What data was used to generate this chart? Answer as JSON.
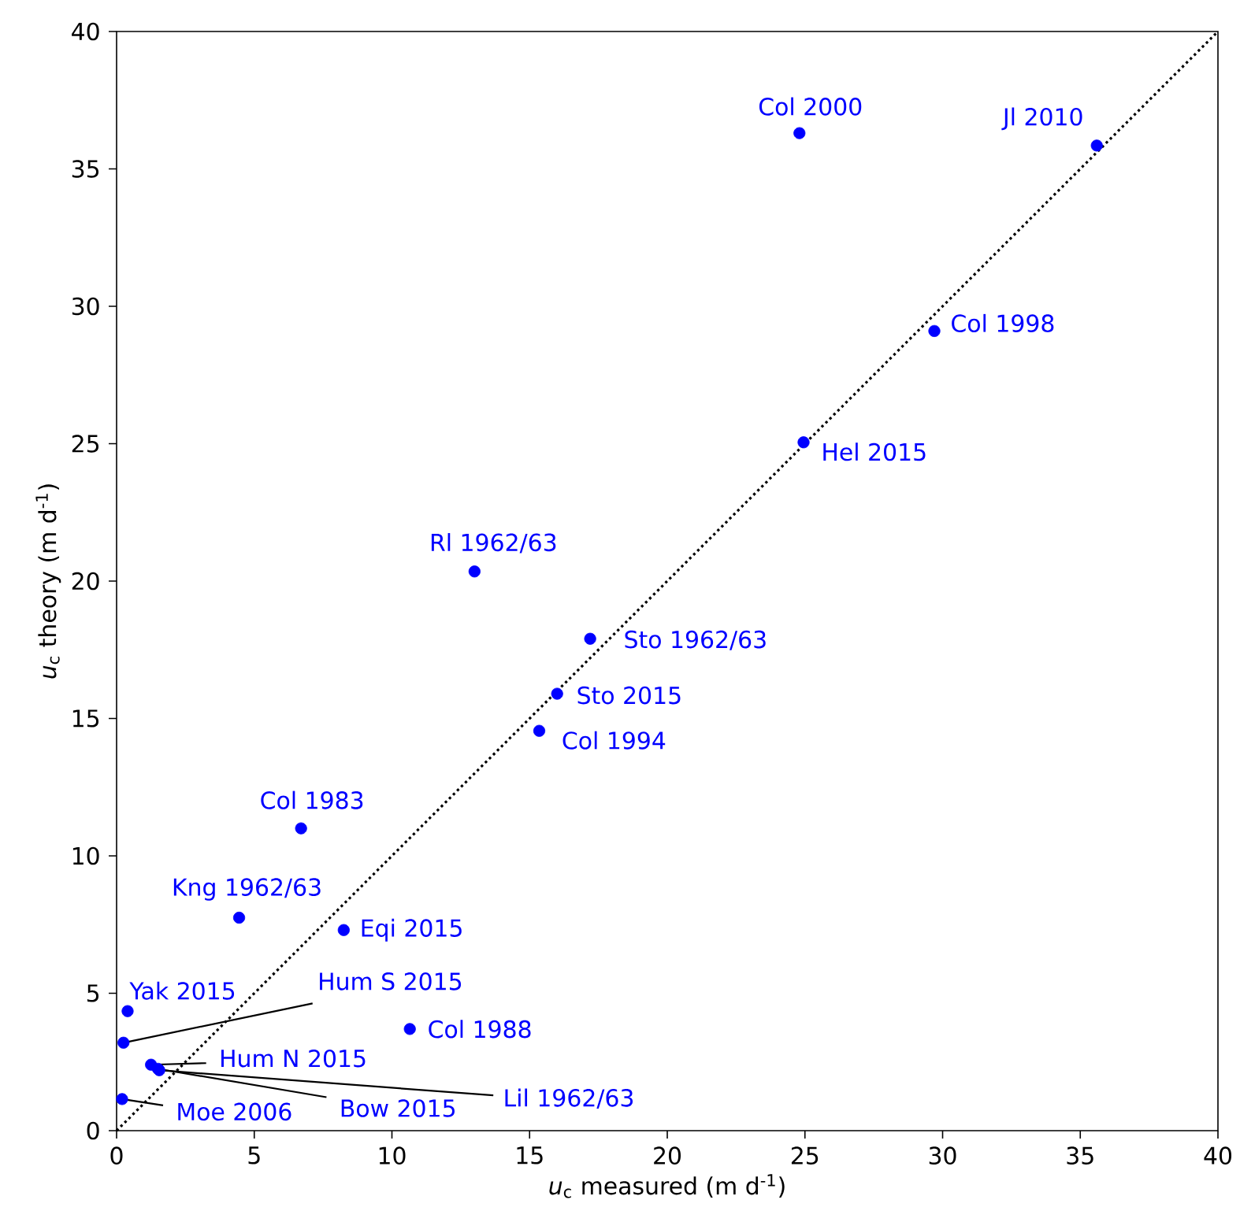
{
  "chart_data": {
    "type": "scatter",
    "xlabel": "*u*$_{c}$ measured (m d$^{-1}$)",
    "ylabel": "*u*$_{c}$ theory (m d$^{-1}$)",
    "xlim": [
      0,
      40
    ],
    "ylim": [
      0,
      40
    ],
    "xticks": [
      0,
      5,
      10,
      15,
      20,
      25,
      30,
      35,
      40
    ],
    "yticks": [
      0,
      5,
      10,
      15,
      20,
      25,
      30,
      35,
      40
    ],
    "grid": false,
    "series": [
      {
        "color": "#0000ff",
        "marker": "circle",
        "x": [
          24.8,
          35.6,
          29.7,
          24.95,
          13.0,
          17.2,
          16.0,
          15.35,
          6.7,
          4.45,
          8.25,
          0.4,
          10.65,
          0.25,
          1.25,
          1.55,
          1.5,
          0.2
        ],
        "values": [
          36.3,
          35.85,
          29.1,
          25.05,
          20.35,
          17.9,
          15.9,
          14.55,
          11.0,
          7.75,
          7.3,
          4.35,
          3.7,
          3.2,
          2.4,
          2.2,
          2.25,
          1.15
        ]
      },
      {
        "type": "line",
        "color": "#000000",
        "line_style": "dotted",
        "marker": "none",
        "x": [
          0,
          40
        ],
        "values": [
          0,
          40
        ]
      }
    ],
    "annotations": [
      {
        "text": "Col 2000",
        "x": 24.8,
        "y": 36.3
      },
      {
        "text": "Jl 2010",
        "x": 35.6,
        "y": 35.85
      },
      {
        "text": "Col 1998",
        "x": 29.7,
        "y": 29.1
      },
      {
        "text": "Hel 2015",
        "x": 24.95,
        "y": 25.05
      },
      {
        "text": "Rl 1962/63",
        "x": 13.0,
        "y": 20.35
      },
      {
        "text": "Sto 1962/63",
        "x": 17.2,
        "y": 17.9
      },
      {
        "text": "Sto 2015",
        "x": 16.0,
        "y": 15.9
      },
      {
        "text": "Col 1994",
        "x": 15.35,
        "y": 14.55
      },
      {
        "text": "Col 1983",
        "x": 6.7,
        "y": 11.0
      },
      {
        "text": "Kng 1962/63",
        "x": 4.45,
        "y": 7.75
      },
      {
        "text": "Eqi 2015",
        "x": 8.25,
        "y": 7.3
      },
      {
        "text": "Yak 2015",
        "x": 0.4,
        "y": 4.35
      },
      {
        "text": "Col 1988",
        "x": 10.65,
        "y": 3.7
      },
      {
        "text": "Hum S 2015",
        "x": 0.25,
        "y": 3.2
      },
      {
        "text": "Hum N 2015",
        "x": 1.25,
        "y": 2.4
      },
      {
        "text": "Lil 1962/63",
        "x": 1.55,
        "y": 2.2
      },
      {
        "text": "Bow 2015",
        "x": 1.5,
        "y": 2.25
      },
      {
        "text": "Moe 2006",
        "x": 0.2,
        "y": 1.15
      }
    ]
  }
}
